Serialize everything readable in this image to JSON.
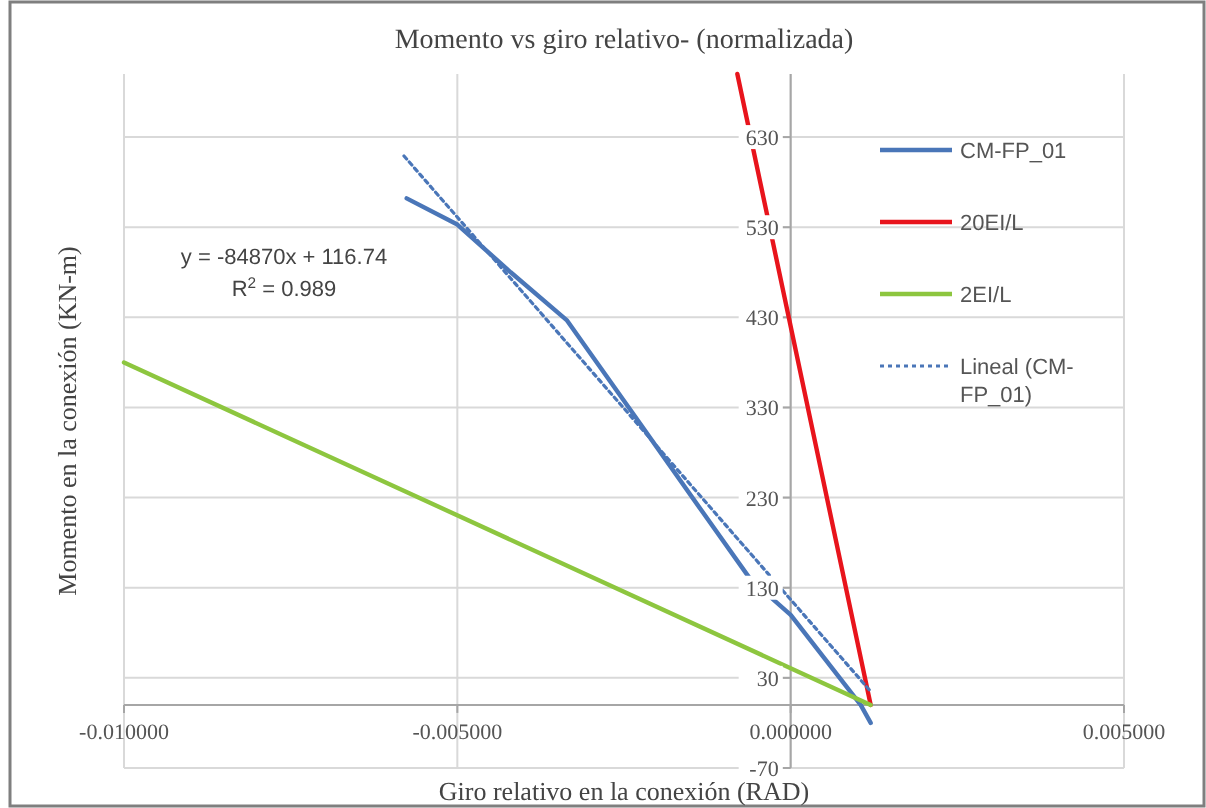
{
  "chart_data": {
    "type": "line",
    "title": "Momento vs giro relativo- (normalizada)",
    "xlabel": "Giro relativo en la conexión (RAD)",
    "ylabel": "Momento en la conexión (KN-m)",
    "xlim": [
      -0.01,
      0.005
    ],
    "xticks": [
      {
        "value": -0.01,
        "label": "-0.010000"
      },
      {
        "value": -0.005,
        "label": "-0.005000"
      },
      {
        "value": 0,
        "label": "0.000000"
      },
      {
        "value": 0.005,
        "label": "0.005000"
      }
    ],
    "ylim": [
      -70,
      700
    ],
    "yticks": [
      -70,
      30,
      130,
      230,
      330,
      430,
      530,
      630
    ],
    "grid": true,
    "legend": "top right",
    "marker": "none",
    "annotations": [
      {
        "text": "y = -84870x + 116.74"
      },
      {
        "text": "R$^{2}$ = 0.989"
      }
    ],
    "series": [
      {
        "name": "CM-FP_01",
        "color": "#4a76b8",
        "x": [
          -0.00576,
          -0.005,
          -0.0042,
          -0.00336,
          -0.0024,
          -0.00135,
          -0.0006,
          0,
          0.00105,
          0.0012
        ],
        "values": [
          562,
          533,
          480,
          427,
          327,
          217,
          139,
          100,
          0,
          -20
        ],
        "line_style": "solid"
      },
      {
        "name": "20EI/L",
        "color": "#e8141c",
        "x": [
          -0.0008,
          0.0012
        ],
        "values": [
          700,
          0
        ],
        "line_style": "solid"
      },
      {
        "name": "2EI/L",
        "color": "#8dc63f",
        "x": [
          -0.01,
          0.0012
        ],
        "values": [
          380,
          0
        ],
        "line_style": "solid"
      },
      {
        "name": "Lineal (CM-FP_01)",
        "color": "#4a76b8",
        "x": [
          -0.0058,
          0.0012
        ],
        "values": [
          609,
          15
        ],
        "line_style": "dotted"
      }
    ]
  }
}
